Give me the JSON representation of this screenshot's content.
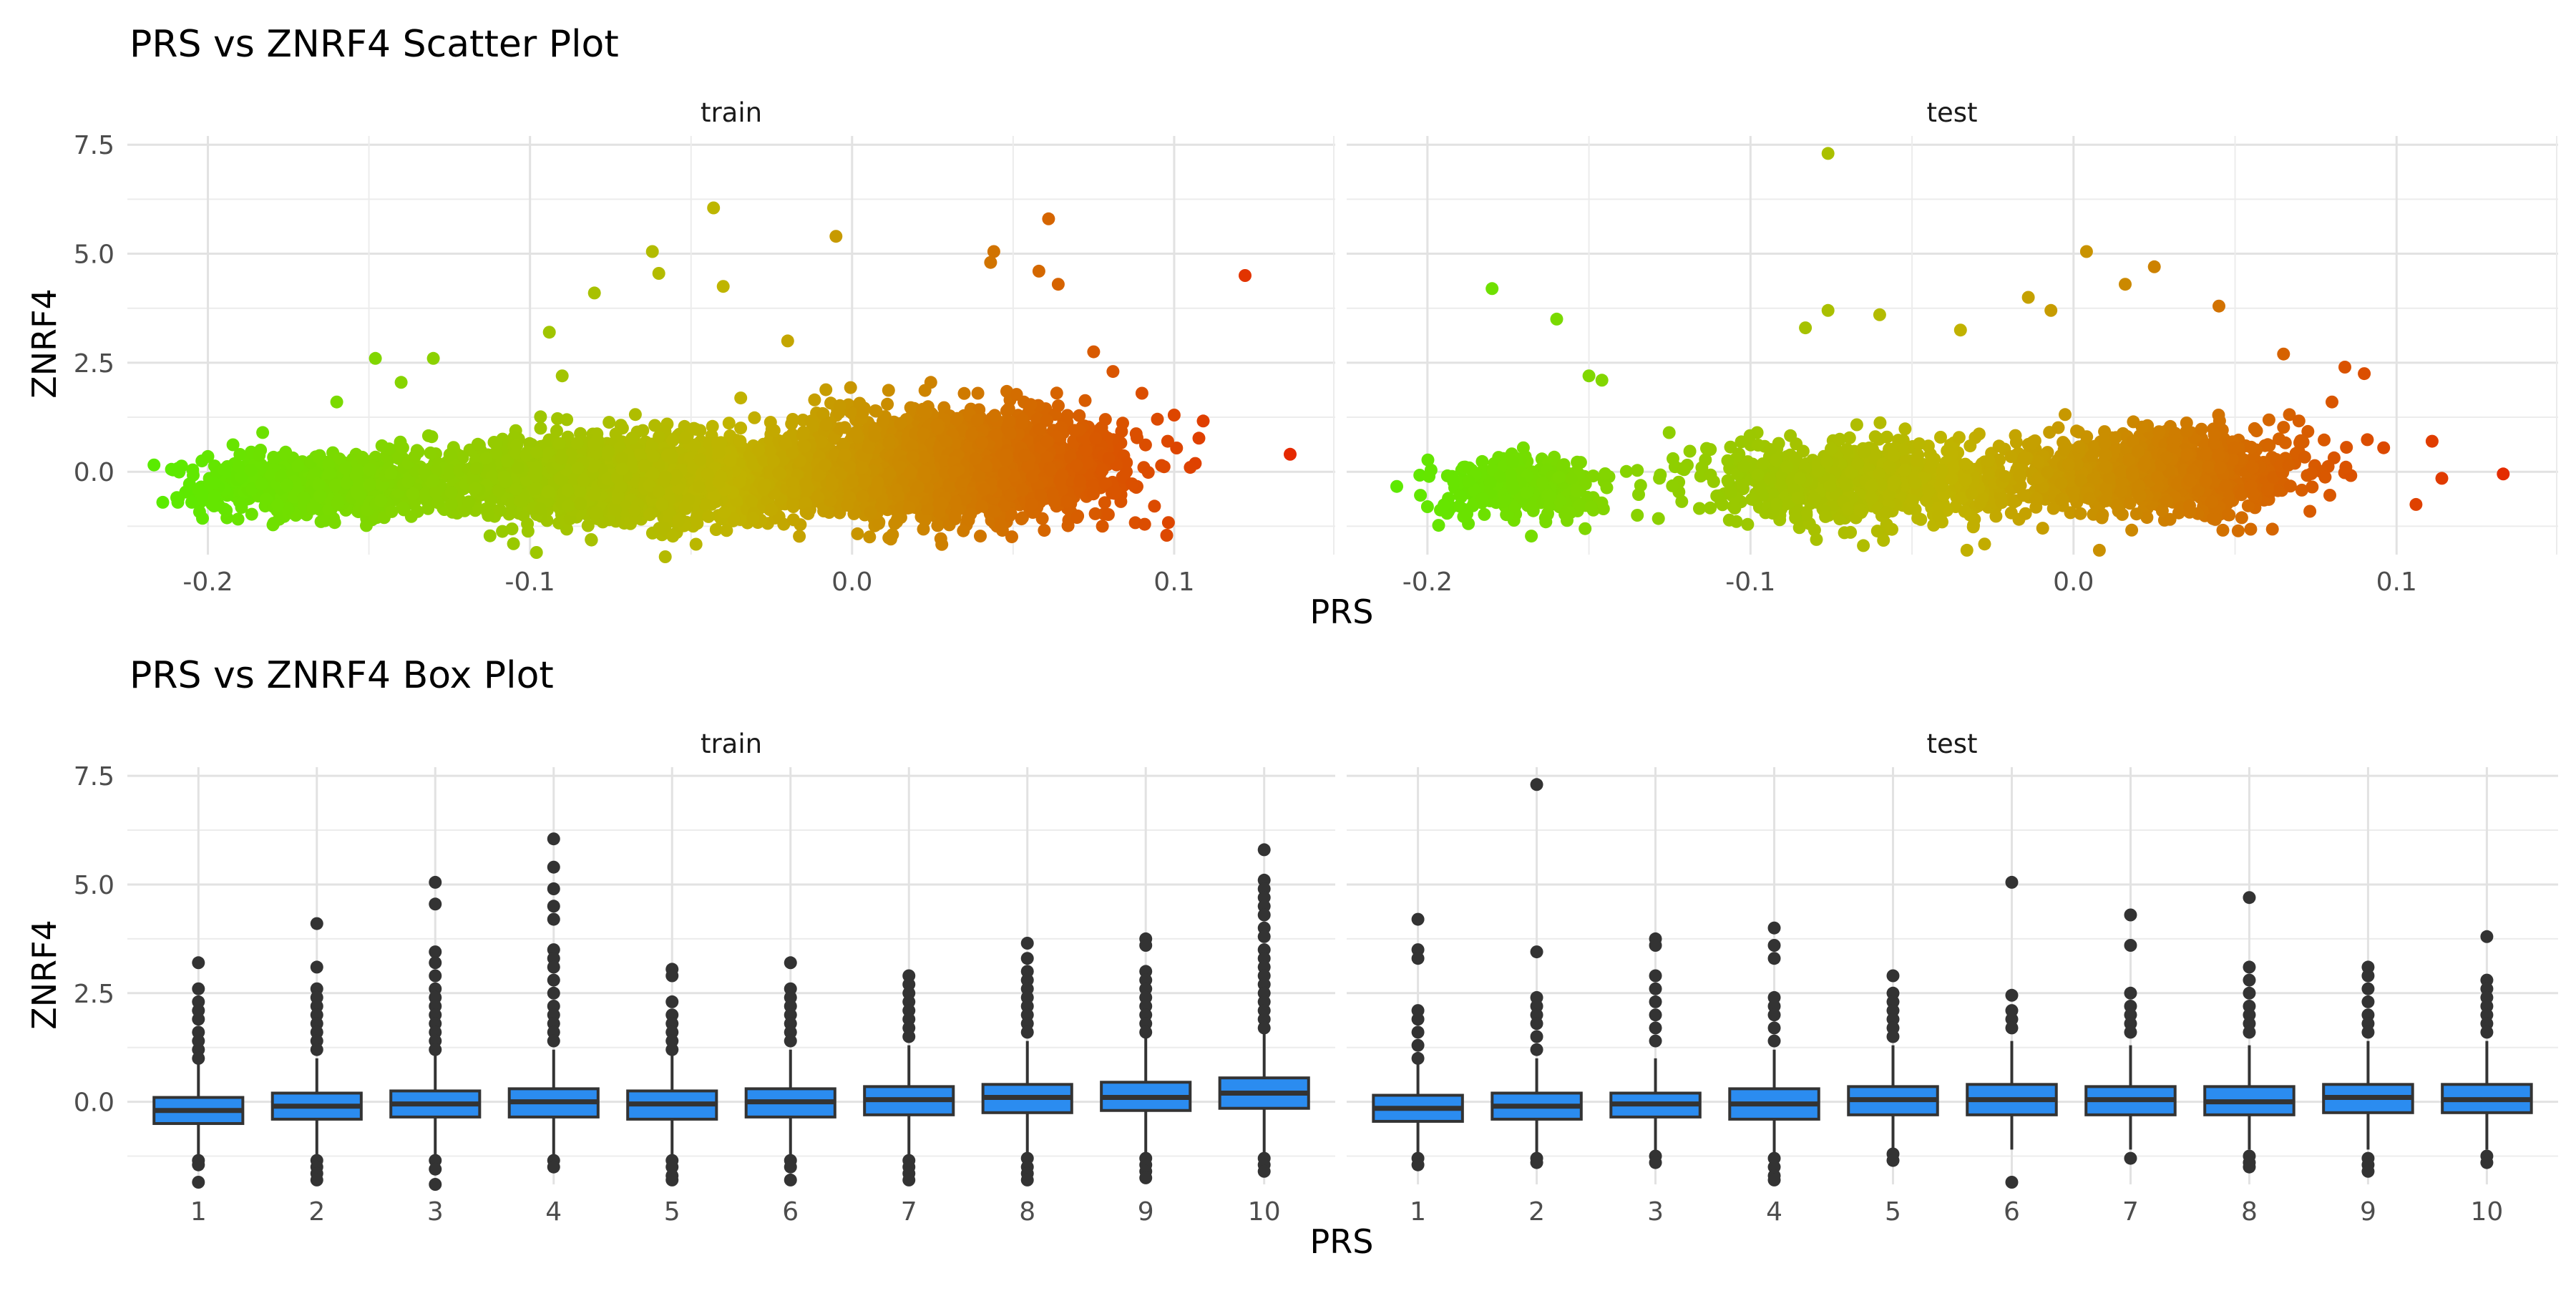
{
  "chart_data": [
    {
      "type": "scatter",
      "title": "PRS vs ZNRF4 Scatter Plot",
      "xlabel": "PRS",
      "ylabel": "ZNRF4",
      "facets": [
        "train",
        "test"
      ],
      "xlim": [
        -0.225,
        0.15
      ],
      "ylim": [
        -1.9,
        7.7
      ],
      "x_ticks": [
        -0.2,
        -0.1,
        0.0,
        0.1
      ],
      "x_tick_labels": [
        "-0.2",
        "-0.1",
        "0.0",
        "0.1"
      ],
      "y_ticks": [
        0,
        2.5,
        5,
        7.5
      ],
      "y_tick_labels": [
        "0.0",
        "2.5",
        "5.0",
        "7.5"
      ],
      "grid": true,
      "color_gradient": {
        "low": "#55ee00",
        "mid": "#c0b400",
        "high": "#e81e00"
      },
      "density_clusters": {
        "train": [
          {
            "x_center": -0.165,
            "x_sd": 0.018,
            "y_center": -0.3,
            "y_sd": 0.3,
            "n": 900
          },
          {
            "x_center": -0.07,
            "x_sd": 0.03,
            "y_center": -0.15,
            "y_sd": 0.4,
            "n": 2000
          },
          {
            "x_center": 0.03,
            "x_sd": 0.025,
            "y_center": 0.15,
            "y_sd": 0.5,
            "n": 2600
          }
        ],
        "test": [
          {
            "x_center": -0.17,
            "x_sd": 0.013,
            "y_center": -0.35,
            "y_sd": 0.3,
            "n": 300
          },
          {
            "x_center": -0.065,
            "x_sd": 0.025,
            "y_center": -0.2,
            "y_sd": 0.4,
            "n": 800
          },
          {
            "x_center": 0.025,
            "x_sd": 0.022,
            "y_center": 0.0,
            "y_sd": 0.4,
            "n": 1000
          }
        ]
      },
      "series": [
        {
          "name": "train",
          "points": [
            {
              "x": -0.043,
              "y": 6.05
            },
            {
              "x": -0.062,
              "y": 5.05
            },
            {
              "x": -0.005,
              "y": 5.4
            },
            {
              "x": 0.061,
              "y": 5.8
            },
            {
              "x": 0.122,
              "y": 4.5
            },
            {
              "x": 0.136,
              "y": 0.4
            },
            {
              "x": 0.044,
              "y": 5.05
            },
            {
              "x": 0.058,
              "y": 4.6
            },
            {
              "x": 0.064,
              "y": 4.3
            },
            {
              "x": -0.06,
              "y": 4.55
            },
            {
              "x": -0.04,
              "y": 4.25
            },
            {
              "x": -0.08,
              "y": 4.1
            },
            {
              "x": 0.043,
              "y": 4.8
            },
            {
              "x": -0.214,
              "y": -0.7
            },
            {
              "x": -0.205,
              "y": -0.7
            },
            {
              "x": -0.2,
              "y": 0.35
            },
            {
              "x": -0.148,
              "y": 2.6
            },
            {
              "x": -0.13,
              "y": 2.6
            },
            {
              "x": -0.094,
              "y": 3.2
            },
            {
              "x": -0.02,
              "y": 3.0
            },
            {
              "x": 0.09,
              "y": 1.8
            },
            {
              "x": 0.1,
              "y": 1.3
            },
            {
              "x": 0.105,
              "y": 0.1
            },
            {
              "x": 0.098,
              "y": 0.7
            },
            {
              "x": -0.098,
              "y": -1.85
            },
            {
              "x": -0.058,
              "y": -1.95
            },
            {
              "x": -0.09,
              "y": 2.2
            },
            {
              "x": 0.081,
              "y": 2.3
            },
            {
              "x": 0.075,
              "y": 2.75
            },
            {
              "x": -0.183,
              "y": 0.9
            },
            {
              "x": -0.16,
              "y": 1.6
            },
            {
              "x": -0.14,
              "y": 2.05
            }
          ]
        },
        {
          "name": "test",
          "points": [
            {
              "x": -0.076,
              "y": 7.3
            },
            {
              "x": -0.18,
              "y": 4.2
            },
            {
              "x": -0.16,
              "y": 3.5
            },
            {
              "x": 0.004,
              "y": 5.05
            },
            {
              "x": 0.025,
              "y": 4.7
            },
            {
              "x": 0.016,
              "y": 4.3
            },
            {
              "x": -0.014,
              "y": 4.0
            },
            {
              "x": -0.007,
              "y": 3.7
            },
            {
              "x": 0.045,
              "y": 3.8
            },
            {
              "x": -0.076,
              "y": 3.7
            },
            {
              "x": -0.06,
              "y": 3.6
            },
            {
              "x": 0.133,
              "y": -0.05
            },
            {
              "x": 0.111,
              "y": 0.7
            },
            {
              "x": 0.114,
              "y": -0.15
            },
            {
              "x": 0.106,
              "y": -0.75
            },
            {
              "x": 0.096,
              "y": 0.55
            },
            {
              "x": 0.084,
              "y": 2.4
            },
            {
              "x": 0.065,
              "y": 2.7
            },
            {
              "x": 0.08,
              "y": 1.6
            },
            {
              "x": -0.2,
              "y": -0.8
            },
            {
              "x": -0.15,
              "y": 2.2
            },
            {
              "x": -0.146,
              "y": 2.1
            },
            {
              "x": -0.124,
              "y": 0.3
            },
            {
              "x": -0.033,
              "y": -1.8
            },
            {
              "x": 0.008,
              "y": -1.8
            },
            {
              "x": -0.035,
              "y": 3.25
            },
            {
              "x": 0.09,
              "y": 2.25
            },
            {
              "x": -0.083,
              "y": 3.3
            }
          ]
        }
      ]
    },
    {
      "type": "box",
      "title": "PRS vs ZNRF4 Box Plot",
      "xlabel": "PRS",
      "ylabel": "ZNRF4",
      "facets": [
        "train",
        "test"
      ],
      "categories": [
        "1",
        "2",
        "3",
        "4",
        "5",
        "6",
        "7",
        "8",
        "9",
        "10"
      ],
      "ylim": [
        -1.9,
        7.7
      ],
      "y_ticks": [
        0,
        2.5,
        5,
        7.5
      ],
      "y_tick_labels": [
        "0.0",
        "2.5",
        "5.0",
        "7.5"
      ],
      "grid": true,
      "box_fill": "#2b8cf0",
      "series": [
        {
          "name": "train",
          "boxes": [
            {
              "q1": -0.5,
              "median": -0.2,
              "q3": 0.1,
              "whisker_low": -1.3,
              "whisker_high": 0.9,
              "outliers": [
                3.2,
                2.6,
                2.3,
                2.1,
                1.9,
                1.6,
                1.4,
                1.2,
                1.0,
                -1.35,
                -1.45,
                -1.85
              ]
            },
            {
              "q1": -0.4,
              "median": -0.1,
              "q3": 0.2,
              "whisker_low": -1.3,
              "whisker_high": 1.0,
              "outliers": [
                4.1,
                3.1,
                2.6,
                2.4,
                2.2,
                2.0,
                1.8,
                1.6,
                1.4,
                1.2,
                -1.35,
                -1.5,
                -1.65,
                -1.8
              ]
            },
            {
              "q1": -0.35,
              "median": -0.05,
              "q3": 0.25,
              "whisker_low": -1.3,
              "whisker_high": 1.1,
              "outliers": [
                5.05,
                4.55,
                3.45,
                3.2,
                2.9,
                2.6,
                2.4,
                2.2,
                2.0,
                1.8,
                1.6,
                1.4,
                1.2,
                -1.35,
                -1.55,
                -1.9
              ]
            },
            {
              "q1": -0.35,
              "median": 0.0,
              "q3": 0.3,
              "whisker_low": -1.3,
              "whisker_high": 1.2,
              "outliers": [
                6.05,
                5.4,
                4.9,
                4.5,
                4.2,
                3.5,
                3.3,
                3.1,
                2.8,
                2.5,
                2.2,
                2.0,
                1.8,
                1.6,
                1.4,
                -1.35,
                -1.5
              ]
            },
            {
              "q1": -0.4,
              "median": -0.05,
              "q3": 0.25,
              "whisker_low": -1.3,
              "whisker_high": 1.1,
              "outliers": [
                3.05,
                2.9,
                2.3,
                2.0,
                1.8,
                1.6,
                1.4,
                1.2,
                -1.35,
                -1.5,
                -1.7,
                -1.8
              ]
            },
            {
              "q1": -0.35,
              "median": 0.0,
              "q3": 0.3,
              "whisker_low": -1.3,
              "whisker_high": 1.2,
              "outliers": [
                3.2,
                2.6,
                2.4,
                2.2,
                2.0,
                1.8,
                1.6,
                1.4,
                -1.35,
                -1.5,
                -1.8
              ]
            },
            {
              "q1": -0.3,
              "median": 0.05,
              "q3": 0.35,
              "whisker_low": -1.3,
              "whisker_high": 1.3,
              "outliers": [
                2.9,
                2.7,
                2.5,
                2.3,
                2.1,
                1.9,
                1.7,
                1.5,
                -1.35,
                -1.5,
                -1.65,
                -1.8
              ]
            },
            {
              "q1": -0.25,
              "median": 0.1,
              "q3": 0.4,
              "whisker_low": -1.2,
              "whisker_high": 1.4,
              "outliers": [
                3.65,
                3.3,
                3.0,
                2.8,
                2.6,
                2.4,
                2.2,
                2.0,
                1.8,
                1.6,
                -1.3,
                -1.5,
                -1.65,
                -1.8
              ]
            },
            {
              "q1": -0.2,
              "median": 0.1,
              "q3": 0.45,
              "whisker_low": -1.2,
              "whisker_high": 1.5,
              "outliers": [
                3.75,
                3.6,
                3.0,
                2.8,
                2.6,
                2.4,
                2.2,
                2.0,
                1.8,
                1.6,
                -1.3,
                -1.45,
                -1.6,
                -1.75
              ]
            },
            {
              "q1": -0.15,
              "median": 0.2,
              "q3": 0.55,
              "whisker_low": -1.2,
              "whisker_high": 1.6,
              "outliers": [
                5.8,
                5.1,
                4.9,
                4.7,
                4.5,
                4.3,
                4.0,
                3.8,
                3.5,
                3.3,
                3.1,
                2.9,
                2.7,
                2.5,
                2.3,
                2.1,
                1.9,
                1.7,
                -1.3,
                -1.45,
                -1.6
              ]
            }
          ]
        },
        {
          "name": "test",
          "boxes": [
            {
              "q1": -0.45,
              "median": -0.15,
              "q3": 0.15,
              "whisker_low": -1.2,
              "whisker_high": 0.9,
              "outliers": [
                4.2,
                3.5,
                3.3,
                2.1,
                1.9,
                1.6,
                1.3,
                1.0,
                -1.3,
                -1.45
              ]
            },
            {
              "q1": -0.4,
              "median": -0.1,
              "q3": 0.2,
              "whisker_low": -1.2,
              "whisker_high": 1.0,
              "outliers": [
                7.3,
                3.45,
                2.4,
                2.2,
                2.0,
                1.8,
                1.5,
                1.2,
                -1.3,
                -1.4
              ]
            },
            {
              "q1": -0.35,
              "median": -0.05,
              "q3": 0.2,
              "whisker_low": -1.2,
              "whisker_high": 1.0,
              "outliers": [
                3.75,
                3.6,
                2.9,
                2.6,
                2.3,
                2.0,
                1.7,
                1.4,
                -1.25,
                -1.4
              ]
            },
            {
              "q1": -0.4,
              "median": -0.05,
              "q3": 0.3,
              "whisker_low": -1.2,
              "whisker_high": 1.2,
              "outliers": [
                4.0,
                3.6,
                3.3,
                2.4,
                2.2,
                2.0,
                1.7,
                1.4,
                -1.3,
                -1.5,
                -1.7,
                -1.8
              ]
            },
            {
              "q1": -0.3,
              "median": 0.05,
              "q3": 0.35,
              "whisker_low": -1.1,
              "whisker_high": 1.3,
              "outliers": [
                2.9,
                2.5,
                2.3,
                2.1,
                1.9,
                1.7,
                1.5,
                -1.2,
                -1.35
              ]
            },
            {
              "q1": -0.3,
              "median": 0.05,
              "q3": 0.4,
              "whisker_low": -1.1,
              "whisker_high": 1.4,
              "outliers": [
                5.05,
                2.45,
                2.1,
                1.9,
                1.7,
                -1.85
              ]
            },
            {
              "q1": -0.3,
              "median": 0.05,
              "q3": 0.35,
              "whisker_low": -1.1,
              "whisker_high": 1.3,
              "outliers": [
                4.3,
                3.6,
                2.5,
                2.2,
                2.0,
                1.8,
                1.6,
                -1.3
              ]
            },
            {
              "q1": -0.3,
              "median": 0.0,
              "q3": 0.35,
              "whisker_low": -1.1,
              "whisker_high": 1.3,
              "outliers": [
                4.7,
                3.1,
                2.8,
                2.5,
                2.2,
                2.0,
                1.8,
                1.6,
                -1.25,
                -1.4,
                -1.5
              ]
            },
            {
              "q1": -0.25,
              "median": 0.1,
              "q3": 0.4,
              "whisker_low": -1.1,
              "whisker_high": 1.4,
              "outliers": [
                3.1,
                2.9,
                2.6,
                2.3,
                2.0,
                1.8,
                1.6,
                -1.3,
                -1.45,
                -1.6
              ]
            },
            {
              "q1": -0.25,
              "median": 0.05,
              "q3": 0.4,
              "whisker_low": -1.1,
              "whisker_high": 1.4,
              "outliers": [
                3.8,
                2.8,
                2.6,
                2.4,
                2.2,
                2.0,
                1.8,
                1.6,
                -1.25,
                -1.4
              ]
            }
          ]
        }
      ]
    }
  ]
}
